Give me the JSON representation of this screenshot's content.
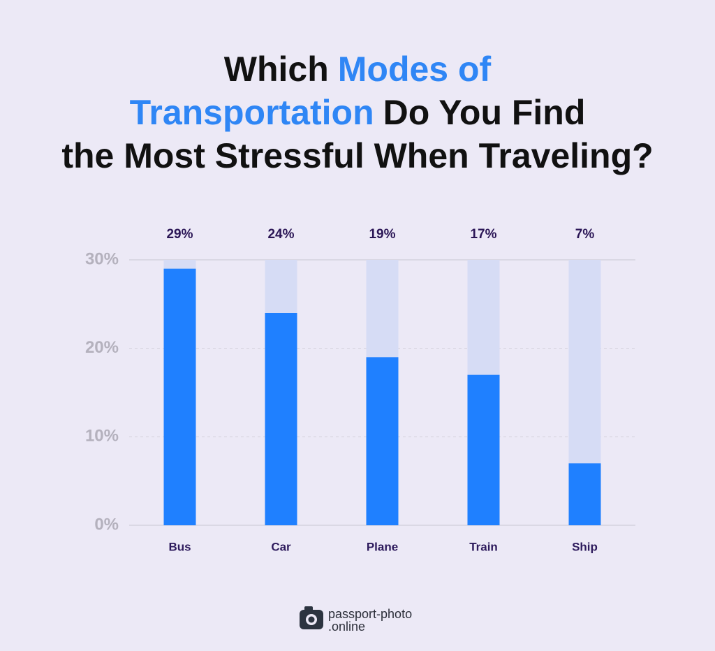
{
  "chart_data": {
    "type": "bar",
    "title": [
      {
        "text": "Which",
        "color": "#111111"
      },
      {
        "text": "Modes of",
        "color": "#2f86f5"
      },
      {
        "text": "Transportation",
        "color": "#2f86f5"
      },
      {
        "text": "Do You Find",
        "color": "#111111"
      },
      {
        "text": "the Most Stressful When Traveling?",
        "color": "#111111"
      }
    ],
    "categories": [
      "Bus",
      "Car",
      "Plane",
      "Train",
      "Ship"
    ],
    "values": [
      29,
      24,
      19,
      17,
      7
    ],
    "value_labels": [
      "29%",
      "24%",
      "19%",
      "17%",
      "7%"
    ],
    "color": "#1f80ff",
    "ylim": [
      0,
      30
    ],
    "yticks": [
      {
        "value": 0,
        "label": "0%"
      },
      {
        "value": 10,
        "label": "10%"
      },
      {
        "value": 20,
        "label": "20%"
      },
      {
        "value": 30,
        "label": "30%"
      }
    ],
    "grid": true
  },
  "footer": {
    "logo_lines": [
      "passport-photo",
      ".online"
    ]
  }
}
